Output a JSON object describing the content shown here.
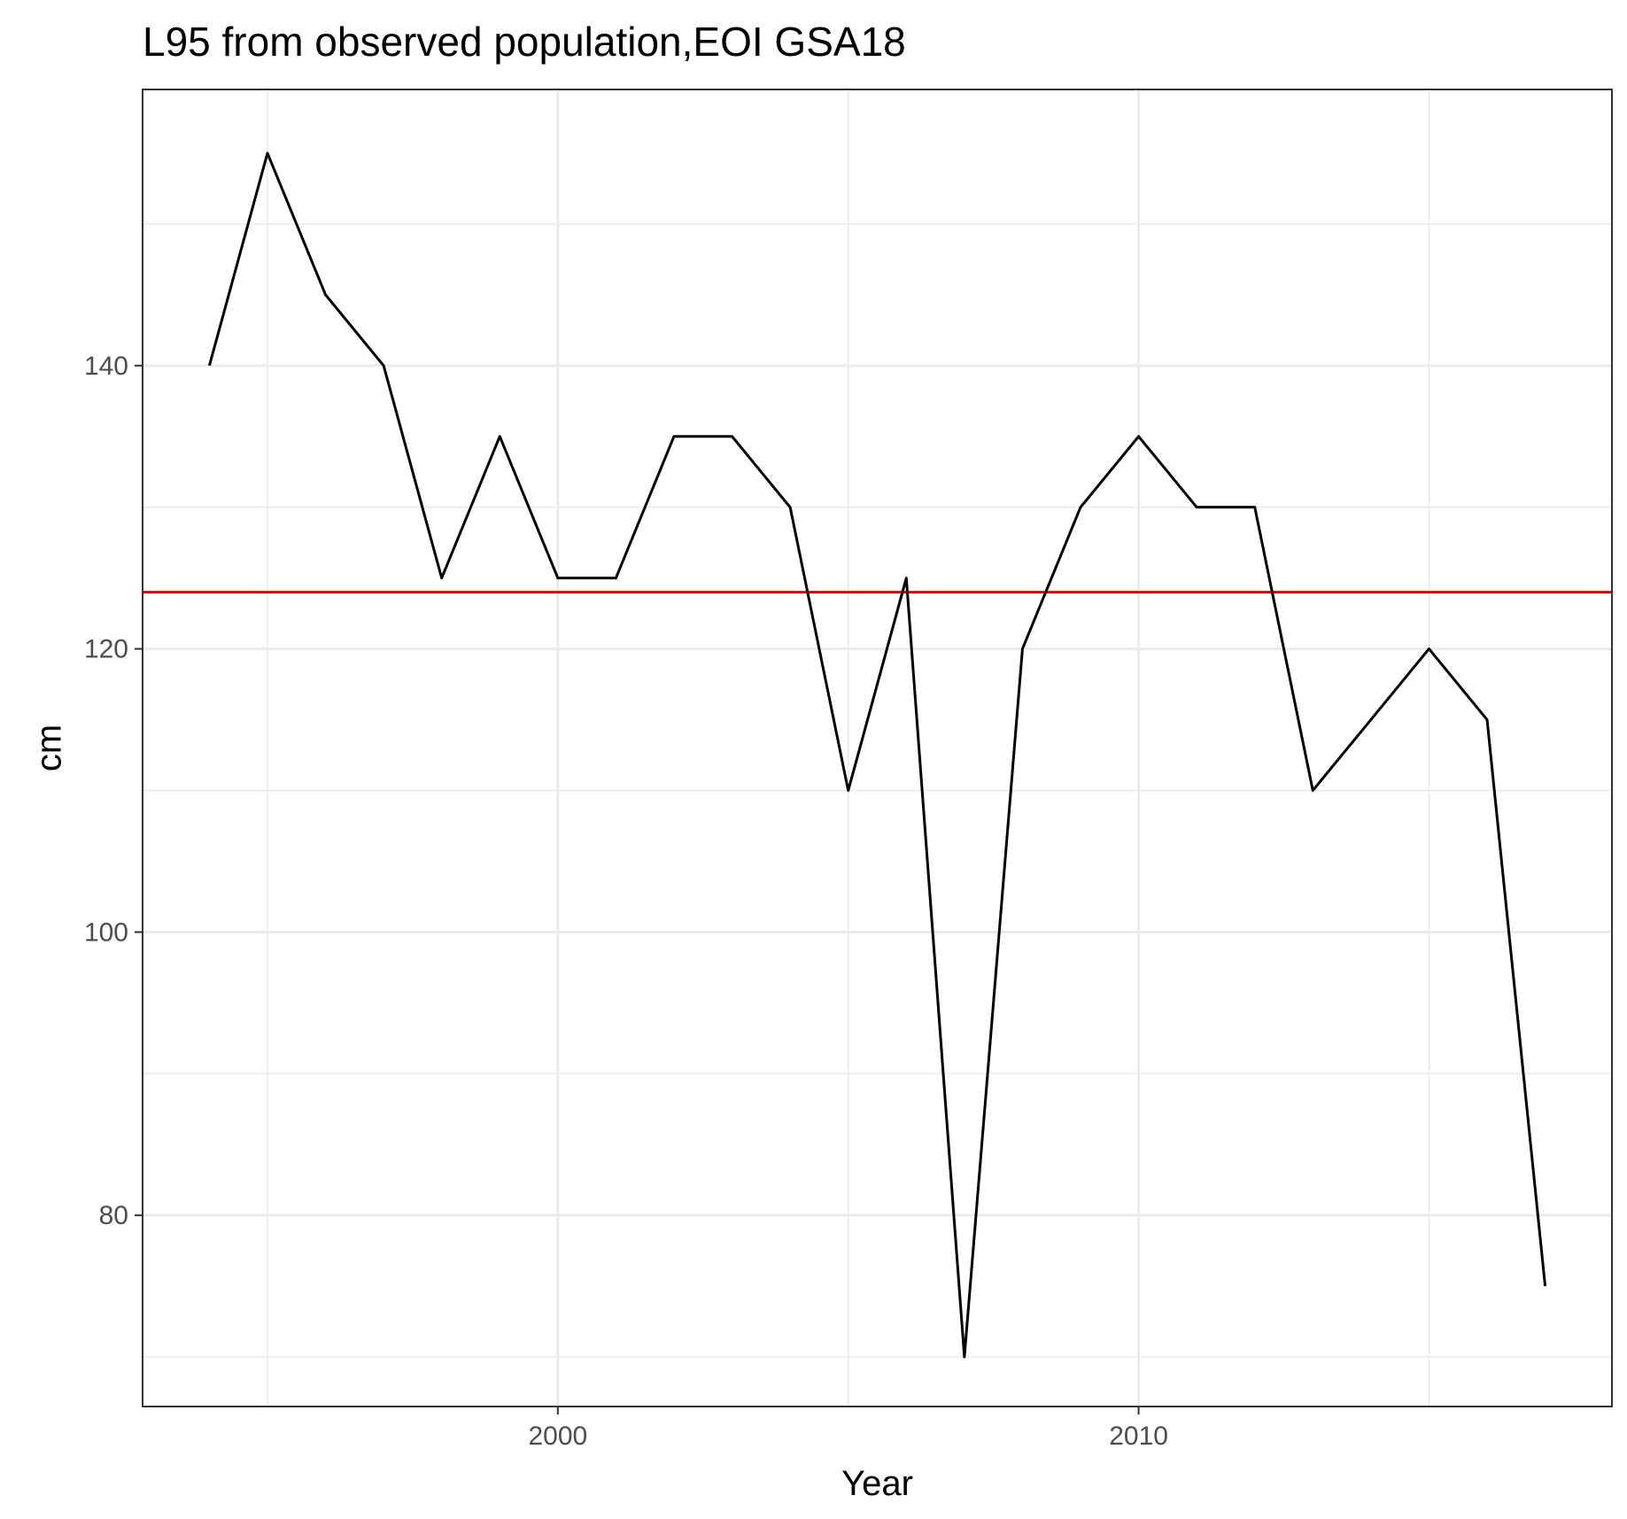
{
  "chart_data": {
    "type": "line",
    "title": "L95 from observed population,EOI GSA18",
    "xlabel": "Year",
    "ylabel": "cm",
    "x": [
      1994,
      1995,
      1996,
      1997,
      1998,
      1999,
      2000,
      2001,
      2002,
      2003,
      2004,
      2005,
      2006,
      2007,
      2008,
      2009,
      2010,
      2011,
      2012,
      2013,
      2014,
      2015,
      2016,
      2017
    ],
    "series": [
      {
        "values": [
          140,
          155,
          145,
          140,
          125,
          135,
          125,
          125,
          135,
          135,
          130,
          110,
          125,
          70,
          120,
          130,
          135,
          130,
          130,
          110,
          115,
          120,
          115,
          75
        ],
        "color": "#000000"
      }
    ],
    "reference_line": {
      "y": 124,
      "color": "#e00000"
    },
    "xlim": [
      1992.85,
      2018.15
    ],
    "ylim": [
      66.5,
      159.5
    ],
    "x_ticks": [
      2000,
      2010
    ],
    "x_minor_ticks": [
      1995,
      2005,
      2015
    ],
    "y_ticks": [
      80,
      100,
      120,
      140
    ],
    "y_minor_ticks": [
      70,
      90,
      110,
      130,
      150
    ],
    "grid": true,
    "legend": "none"
  }
}
